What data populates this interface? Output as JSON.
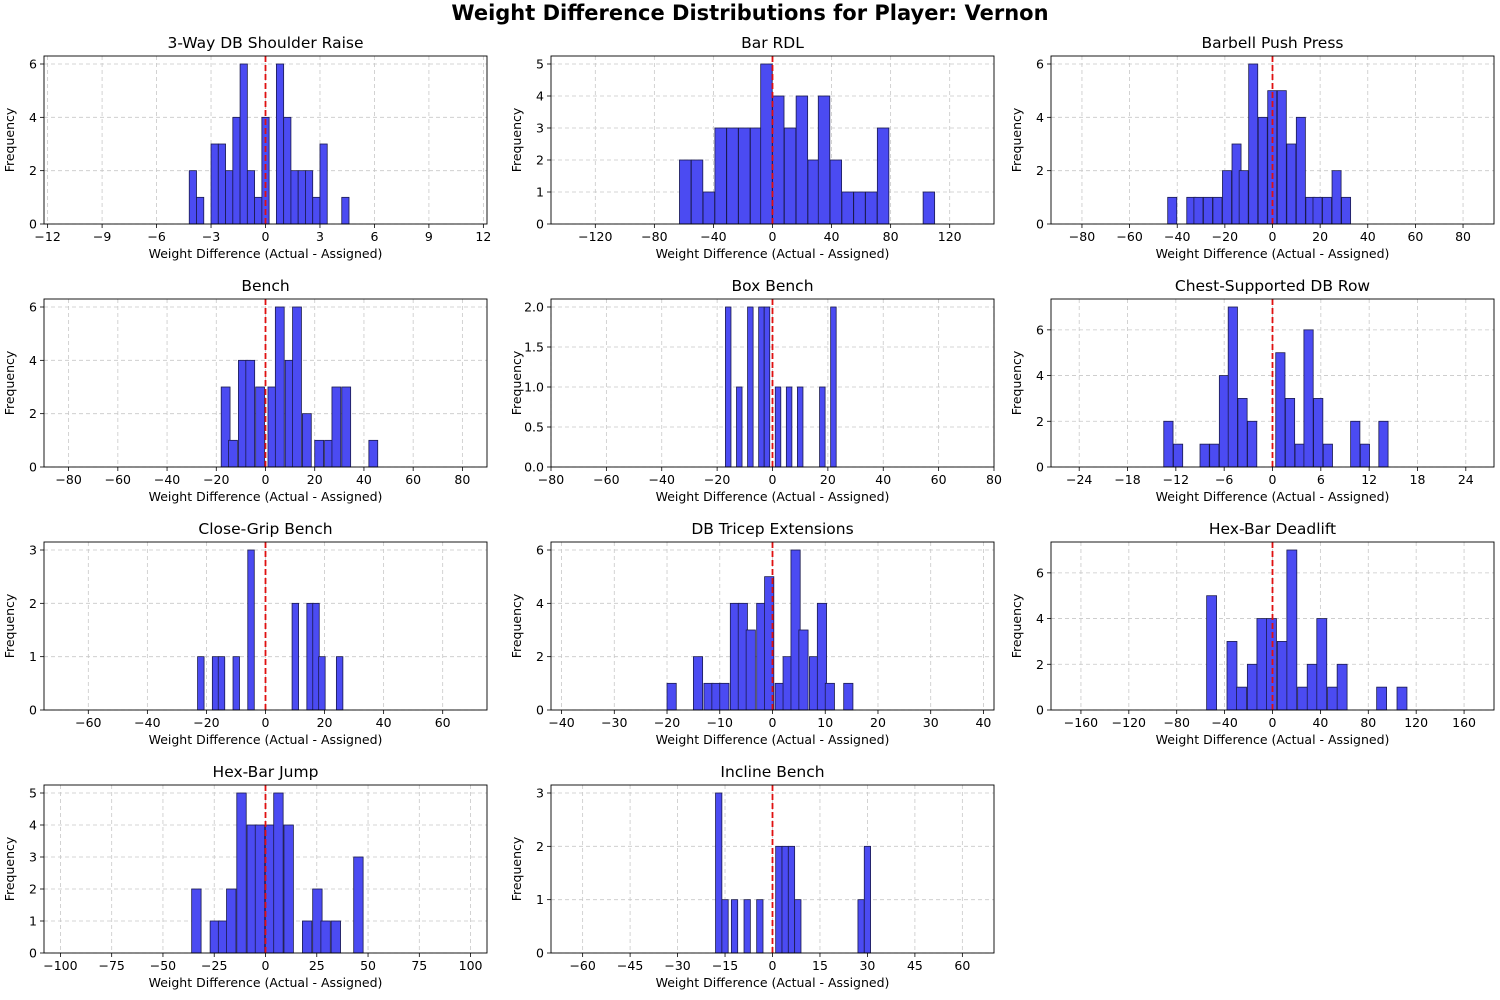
{
  "title": "Weight Difference Distributions for Player: Vernon",
  "colors": {
    "bar_fill": "#4b4bf2",
    "bar_edge": "#1a1a4d",
    "zero_line": "#e01010",
    "grid": "#c8c8c8"
  },
  "chart_data": [
    {
      "type": "bar",
      "title": "3-Way DB Shoulder Raise",
      "xlabel": "Weight Difference (Actual - Assigned)",
      "ylabel": "Frequency",
      "xlim": [
        -12.2,
        12.2
      ],
      "xticks": [
        -12,
        -9,
        -6,
        -3,
        0,
        3,
        6,
        9,
        12
      ],
      "ylim": [
        0,
        6.3
      ],
      "yticks": [
        0,
        2,
        4,
        6
      ],
      "bin_width": 0.4,
      "grid": true,
      "zero_line": 0,
      "bins": [
        [
          -4.2,
          2
        ],
        [
          -3.8,
          1
        ],
        [
          -3.0,
          3
        ],
        [
          -2.6,
          3
        ],
        [
          -2.2,
          2
        ],
        [
          -1.8,
          4
        ],
        [
          -1.4,
          6
        ],
        [
          -1.0,
          2
        ],
        [
          -0.6,
          1
        ],
        [
          -0.2,
          4
        ],
        [
          0.6,
          6
        ],
        [
          1.0,
          4
        ],
        [
          1.4,
          2
        ],
        [
          1.8,
          2
        ],
        [
          2.2,
          2
        ],
        [
          2.6,
          1
        ],
        [
          3.0,
          3
        ],
        [
          4.2,
          1
        ]
      ]
    },
    {
      "type": "bar",
      "title": "Bar RDL",
      "xlabel": "Weight Difference (Actual - Assigned)",
      "ylabel": "Frequency",
      "xlim": [
        -150,
        150
      ],
      "xticks": [
        -120,
        -80,
        -40,
        0,
        40,
        80,
        120
      ],
      "ylim": [
        0,
        5.25
      ],
      "yticks": [
        0,
        1,
        2,
        3,
        4,
        5
      ],
      "bin_width": 7.8,
      "grid": true,
      "zero_line": 0,
      "bins": [
        [
          -63,
          2
        ],
        [
          -55,
          2
        ],
        [
          -47,
          1
        ],
        [
          -39,
          3
        ],
        [
          -31,
          3
        ],
        [
          -23,
          3
        ],
        [
          -15,
          3
        ],
        [
          -8,
          5
        ],
        [
          0,
          4
        ],
        [
          8,
          3
        ],
        [
          16,
          4
        ],
        [
          24,
          2
        ],
        [
          31,
          4
        ],
        [
          39,
          2
        ],
        [
          47,
          1
        ],
        [
          55,
          1
        ],
        [
          63,
          1
        ],
        [
          71,
          3
        ],
        [
          102,
          1
        ]
      ]
    },
    {
      "type": "bar",
      "title": "Barbell Push Press",
      "xlabel": "Weight Difference (Actual - Assigned)",
      "ylabel": "Frequency",
      "xlim": [
        -93,
        93
      ],
      "xticks": [
        -80,
        -60,
        -40,
        -20,
        0,
        20,
        40,
        60,
        80
      ],
      "ylim": [
        0,
        6.3
      ],
      "yticks": [
        0,
        2,
        4,
        6
      ],
      "bin_width": 3.8,
      "grid": true,
      "zero_line": 0,
      "bins": [
        [
          -44,
          1
        ],
        [
          -36,
          1
        ],
        [
          -33,
          1
        ],
        [
          -29,
          1
        ],
        [
          -25,
          1
        ],
        [
          -21,
          2
        ],
        [
          -17,
          3
        ],
        [
          -14,
          2
        ],
        [
          -10,
          6
        ],
        [
          -6,
          4
        ],
        [
          -2,
          5
        ],
        [
          2,
          5
        ],
        [
          6,
          3
        ],
        [
          10,
          4
        ],
        [
          14,
          1
        ],
        [
          17,
          1
        ],
        [
          21,
          1
        ],
        [
          25,
          2
        ],
        [
          29,
          1
        ]
      ]
    },
    {
      "type": "bar",
      "title": "Bench",
      "xlabel": "Weight Difference (Actual - Assigned)",
      "ylabel": "Frequency",
      "xlim": [
        -90,
        90
      ],
      "xticks": [
        -80,
        -60,
        -40,
        -20,
        0,
        20,
        40,
        60,
        80
      ],
      "ylim": [
        0,
        6.3
      ],
      "yticks": [
        0,
        2,
        4,
        6
      ],
      "bin_width": 3.6,
      "grid": true,
      "zero_line": 0,
      "bins": [
        [
          -18,
          3
        ],
        [
          -15,
          1
        ],
        [
          -11,
          4
        ],
        [
          -8,
          4
        ],
        [
          -4,
          3
        ],
        [
          1,
          3
        ],
        [
          4,
          6
        ],
        [
          8,
          4
        ],
        [
          11,
          6
        ],
        [
          15,
          2
        ],
        [
          20,
          1
        ],
        [
          24,
          1
        ],
        [
          27,
          3
        ],
        [
          31,
          3
        ],
        [
          42,
          1
        ]
      ]
    },
    {
      "type": "bar",
      "title": "Box Bench",
      "xlabel": "Weight Difference (Actual - Assigned)",
      "ylabel": "Frequency",
      "xlim": [
        -80,
        80
      ],
      "xticks": [
        -80,
        -60,
        -40,
        -20,
        0,
        20,
        40,
        60,
        80
      ],
      "ylim": [
        0,
        2.1
      ],
      "yticks": [
        0,
        0.5,
        1.0,
        1.5,
        2.0
      ],
      "ytick_labels": [
        "0.0",
        "0.5",
        "1.0",
        "1.5",
        "2.0"
      ],
      "bin_width": 2.0,
      "grid": true,
      "zero_line": 0,
      "bins": [
        [
          -17,
          2
        ],
        [
          -13,
          1
        ],
        [
          -9,
          2
        ],
        [
          -5,
          2
        ],
        [
          -3,
          2
        ],
        [
          1,
          1
        ],
        [
          5,
          1
        ],
        [
          9,
          1
        ],
        [
          17,
          1
        ],
        [
          21,
          2
        ]
      ]
    },
    {
      "type": "bar",
      "title": "Chest-Supported DB Row",
      "xlabel": "Weight Difference (Actual - Assigned)",
      "ylabel": "Frequency",
      "xlim": [
        -27.5,
        27.5
      ],
      "xticks": [
        -24,
        -18,
        -12,
        -6,
        0,
        6,
        12,
        18,
        24
      ],
      "ylim": [
        0,
        7.35
      ],
      "yticks": [
        0,
        2,
        4,
        6
      ],
      "bin_width": 1.15,
      "grid": true,
      "zero_line": 0,
      "bins": [
        [
          -13.5,
          2
        ],
        [
          -12.3,
          1
        ],
        [
          -9.0,
          1
        ],
        [
          -7.8,
          1
        ],
        [
          -6.6,
          4
        ],
        [
          -5.5,
          7
        ],
        [
          -4.3,
          3
        ],
        [
          -3.1,
          2
        ],
        [
          0.4,
          5
        ],
        [
          1.6,
          3
        ],
        [
          2.8,
          1
        ],
        [
          3.9,
          6
        ],
        [
          5.1,
          3
        ],
        [
          6.3,
          1
        ],
        [
          9.7,
          2
        ],
        [
          10.9,
          1
        ],
        [
          13.2,
          2
        ]
      ]
    },
    {
      "type": "bar",
      "title": "Close-Grip Bench",
      "xlabel": "Weight Difference (Actual - Assigned)",
      "ylabel": "Frequency",
      "xlim": [
        -75,
        75
      ],
      "xticks": [
        -60,
        -40,
        -20,
        0,
        20,
        40,
        60
      ],
      "ylim": [
        0,
        3.15
      ],
      "yticks": [
        0,
        1,
        2,
        3
      ],
      "bin_width": 2.2,
      "grid": true,
      "zero_line": 0,
      "bins": [
        [
          -23,
          1
        ],
        [
          -18,
          1
        ],
        [
          -16,
          1
        ],
        [
          -11,
          1
        ],
        [
          -6,
          3
        ],
        [
          9,
          2
        ],
        [
          14,
          2
        ],
        [
          16,
          2
        ],
        [
          18,
          1
        ],
        [
          24,
          1
        ]
      ]
    },
    {
      "type": "bar",
      "title": "DB Tricep Extensions",
      "xlabel": "Weight Difference (Actual - Assigned)",
      "ylabel": "Frequency",
      "xlim": [
        -42,
        42
      ],
      "xticks": [
        -40,
        -30,
        -20,
        -10,
        0,
        10,
        20,
        30,
        40
      ],
      "ylim": [
        0,
        6.3
      ],
      "yticks": [
        0,
        2,
        4,
        6
      ],
      "bin_width": 1.75,
      "grid": true,
      "zero_line": 0,
      "bins": [
        [
          -20,
          1
        ],
        [
          -15,
          2
        ],
        [
          -13,
          1
        ],
        [
          -11.5,
          1
        ],
        [
          -10,
          1
        ],
        [
          -8,
          4
        ],
        [
          -6.5,
          4
        ],
        [
          -5,
          3
        ],
        [
          -3,
          4
        ],
        [
          -1.5,
          5
        ],
        [
          0.5,
          1
        ],
        [
          2,
          2
        ],
        [
          3.5,
          6
        ],
        [
          5,
          3
        ],
        [
          7,
          2
        ],
        [
          8.5,
          4
        ],
        [
          10,
          1
        ],
        [
          13.5,
          1
        ]
      ]
    },
    {
      "type": "bar",
      "title": "Hex-Bar Deadlift",
      "xlabel": "Weight Difference (Actual - Assigned)",
      "ylabel": "Frequency",
      "xlim": [
        -185,
        185
      ],
      "xticks": [
        -160,
        -120,
        -80,
        -40,
        0,
        40,
        80,
        120,
        160
      ],
      "ylim": [
        0,
        7.35
      ],
      "yticks": [
        0,
        2,
        4,
        6
      ],
      "bin_width": 8.3,
      "grid": true,
      "zero_line": 0,
      "bins": [
        [
          -55,
          5
        ],
        [
          -38,
          3
        ],
        [
          -30,
          1
        ],
        [
          -21,
          2
        ],
        [
          -13,
          4
        ],
        [
          -5,
          4
        ],
        [
          4,
          3
        ],
        [
          12,
          7
        ],
        [
          21,
          1
        ],
        [
          29,
          2
        ],
        [
          37,
          4
        ],
        [
          46,
          1
        ],
        [
          54,
          2
        ],
        [
          87,
          1
        ],
        [
          104,
          1
        ]
      ]
    },
    {
      "type": "bar",
      "title": "Hex-Bar Jump",
      "xlabel": "Weight Difference (Actual - Assigned)",
      "ylabel": "Frequency",
      "xlim": [
        -108,
        108
      ],
      "xticks": [
        -100,
        -75,
        -50,
        -25,
        0,
        25,
        50,
        75,
        100
      ],
      "ylim": [
        0,
        5.25
      ],
      "yticks": [
        0,
        1,
        2,
        3,
        4,
        5
      ],
      "bin_width": 4.6,
      "grid": true,
      "zero_line": 0,
      "bins": [
        [
          -36,
          2
        ],
        [
          -27,
          1
        ],
        [
          -23,
          1
        ],
        [
          -19,
          2
        ],
        [
          -14,
          5
        ],
        [
          -9,
          4
        ],
        [
          -5,
          4
        ],
        [
          0,
          4
        ],
        [
          4,
          5
        ],
        [
          9,
          4
        ],
        [
          18,
          1
        ],
        [
          23,
          2
        ],
        [
          27,
          1
        ],
        [
          32,
          1
        ],
        [
          43,
          3
        ]
      ]
    },
    {
      "type": "bar",
      "title": "Incline Bench",
      "xlabel": "Weight Difference (Actual - Assigned)",
      "ylabel": "Frequency",
      "xlim": [
        -70,
        70
      ],
      "xticks": [
        -60,
        -45,
        -30,
        -15,
        0,
        15,
        30,
        45,
        60
      ],
      "ylim": [
        0,
        3.15
      ],
      "yticks": [
        0,
        1,
        2,
        3
      ],
      "bin_width": 2.0,
      "grid": true,
      "zero_line": 0,
      "bins": [
        [
          -18,
          3
        ],
        [
          -16,
          1
        ],
        [
          -13,
          1
        ],
        [
          -9,
          1
        ],
        [
          -5,
          1
        ],
        [
          1,
          2
        ],
        [
          3,
          2
        ],
        [
          5,
          2
        ],
        [
          7,
          1
        ],
        [
          27,
          1
        ],
        [
          29,
          2
        ]
      ]
    }
  ]
}
